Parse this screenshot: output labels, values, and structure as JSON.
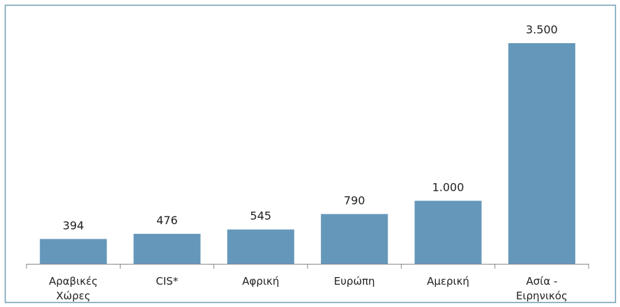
{
  "chart_data": {
    "type": "bar",
    "categories": [
      "Αραβικές Χώρες",
      "CIS*",
      "Αφρική",
      "Ευρώπη",
      "Αμερική",
      "Ασία - Ειρηνικός"
    ],
    "values": [
      394,
      476,
      545,
      790,
      1000,
      3500
    ],
    "value_labels": [
      "394",
      "476",
      "545",
      "790",
      "1.000",
      "3.500"
    ],
    "color": "#6597ba"
  }
}
